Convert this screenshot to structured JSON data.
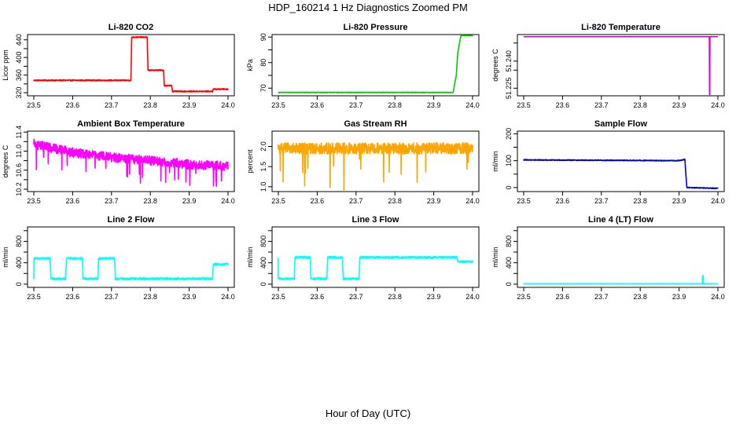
{
  "figure": {
    "title": "HDP_160214  1 Hz Diagnostics Zoomed PM",
    "xlabel": "Hour of Day (UTC)"
  },
  "chart_data": [
    {
      "type": "line",
      "title": "Li-820 CO2",
      "ylabel": "Licor ppm",
      "color": "#ff0000",
      "xlim": [
        23.5,
        24.0
      ],
      "ylim": [
        313,
        452
      ],
      "xticks": [
        "23.5",
        "23.6",
        "23.7",
        "23.8",
        "23.9",
        "24.0"
      ],
      "yticks": [
        320,
        340,
        360,
        380,
        400,
        420,
        440
      ],
      "yticks_shown": [
        "320",
        "360",
        "400",
        "440"
      ],
      "x": [
        23.5,
        23.75,
        23.752,
        23.792,
        23.794,
        23.834,
        23.836,
        23.855,
        23.857,
        23.96,
        23.962,
        24.0
      ],
      "y": [
        348,
        348,
        446,
        446,
        371,
        371,
        336,
        336,
        323,
        323,
        328,
        328
      ],
      "noise": 1.2
    },
    {
      "type": "line",
      "title": "Li-820 Pressure",
      "ylabel": "kPa",
      "color": "#00cc00",
      "xlim": [
        23.5,
        24.0
      ],
      "ylim": [
        67,
        91
      ],
      "xticks": [
        "23.5",
        "23.6",
        "23.7",
        "23.8",
        "23.9",
        "24.0"
      ],
      "yticks": [
        70,
        75,
        80,
        85,
        90
      ],
      "yticks_shown": [
        "70",
        "80",
        "90"
      ],
      "x": [
        23.5,
        23.95,
        23.958,
        23.962,
        23.97,
        24.0
      ],
      "y": [
        68.3,
        68.3,
        75,
        84,
        90.6,
        90.6
      ],
      "noise": 0.1
    },
    {
      "type": "line",
      "title": "Li-820 Temperature",
      "ylabel": "degrees C",
      "color": "#cc00cc",
      "xlim": [
        23.5,
        24.0
      ],
      "ylim": [
        51.2208,
        51.2547
      ],
      "xticks": [
        "23.5",
        "23.6",
        "23.7",
        "23.8",
        "23.9",
        "24.0"
      ],
      "yticks": [
        51.225,
        51.235,
        51.24,
        51.25
      ],
      "yticks_shown": [
        "51.225",
        "51.240"
      ],
      "x": [
        23.5,
        23.978,
        23.9785,
        23.979,
        23.9795,
        24.0
      ],
      "y": [
        51.2535,
        51.2535,
        51.2215,
        51.2215,
        51.2535,
        51.2535
      ],
      "noise": 0
    },
    {
      "type": "line",
      "title": "Ambient Box Temperature",
      "ylabel": "degrees C",
      "color": "#ff00ff",
      "xlim": [
        23.5,
        24.0
      ],
      "ylim": [
        10.15,
        11.42
      ],
      "xticks": [
        "23.5",
        "23.6",
        "23.7",
        "23.8",
        "23.9",
        "24.0"
      ],
      "yticks": [
        10.2,
        10.4,
        10.6,
        10.8,
        11.0,
        11.2,
        11.4
      ],
      "yticks_shown": [
        "10.2",
        "10.6",
        "11.0",
        "11.4"
      ],
      "x": [
        23.5,
        23.6,
        23.7,
        23.8,
        23.9,
        24.0
      ],
      "y": [
        11.15,
        10.97,
        10.87,
        10.8,
        10.72,
        10.68
      ],
      "noise": 0.1
    },
    {
      "type": "line",
      "title": "Gas Stream RH",
      "ylabel": "percent",
      "color": "#ffa500",
      "xlim": [
        23.5,
        24.0
      ],
      "ylim": [
        0.88,
        2.38
      ],
      "xticks": [
        "23.5",
        "23.6",
        "23.7",
        "23.8",
        "23.9",
        "24.0"
      ],
      "yticks": [
        1.0,
        1.5,
        2.0
      ],
      "yticks_shown": [
        "1.0",
        "1.5",
        "2.0"
      ],
      "x": [
        23.5,
        24.0
      ],
      "y": [
        1.95,
        1.95
      ],
      "noise": 0.14
    },
    {
      "type": "line",
      "title": "Sample Flow",
      "ylabel": "ml/min",
      "color": "#0000cc",
      "xlim": [
        23.5,
        24.0
      ],
      "ylim": [
        -15,
        210
      ],
      "xticks": [
        "23.5",
        "23.6",
        "23.7",
        "23.8",
        "23.9",
        "24.0"
      ],
      "yticks": [
        0,
        50,
        100,
        150,
        200
      ],
      "yticks_shown": [
        "0",
        "100",
        "200"
      ],
      "x": [
        23.5,
        23.9,
        23.915,
        23.917,
        23.92,
        24.0
      ],
      "y": [
        103,
        100,
        105,
        60,
        0,
        -3
      ],
      "noise": 1.5
    },
    {
      "type": "line",
      "title": "Line 2 Flow",
      "ylabel": "ml/min",
      "color": "#00ffff",
      "xlim": [
        23.5,
        24.0
      ],
      "ylim": [
        -60,
        1070
      ],
      "xticks": [
        "23.5",
        "23.6",
        "23.7",
        "23.8",
        "23.9",
        "24.0"
      ],
      "yticks": [
        0,
        200,
        400,
        600,
        800,
        1000
      ],
      "yticks_shown": [
        "0",
        "400",
        "800"
      ],
      "x": [
        23.5,
        23.501,
        23.503,
        23.542,
        23.544,
        23.582,
        23.584,
        23.625,
        23.627,
        23.665,
        23.667,
        23.708,
        23.71,
        23.96,
        23.962,
        24.0
      ],
      "y": [
        100,
        480,
        480,
        480,
        100,
        100,
        480,
        480,
        100,
        100,
        480,
        480,
        100,
        100,
        370,
        370
      ],
      "noise": 20
    },
    {
      "type": "line",
      "title": "Line 3 Flow",
      "ylabel": "ml/min",
      "color": "#00ffff",
      "xlim": [
        23.5,
        24.0
      ],
      "ylim": [
        -60,
        1070
      ],
      "xticks": [
        "23.5",
        "23.6",
        "23.7",
        "23.8",
        "23.9",
        "24.0"
      ],
      "yticks": [
        0,
        200,
        400,
        600,
        800,
        1000
      ],
      "yticks_shown": [
        "0",
        "400",
        "800"
      ],
      "x": [
        23.5,
        23.5,
        23.502,
        23.541,
        23.543,
        23.582,
        23.584,
        23.625,
        23.627,
        23.665,
        23.667,
        23.708,
        23.71,
        23.96,
        23.962,
        24.0
      ],
      "y": [
        480,
        100,
        100,
        100,
        500,
        500,
        100,
        100,
        500,
        500,
        100,
        100,
        500,
        500,
        420,
        420
      ],
      "noise": 20
    },
    {
      "type": "line",
      "title": "Line 4 (LT) Flow",
      "ylabel": "ml/min",
      "color": "#00ffff",
      "xlim": [
        23.5,
        24.0
      ],
      "ylim": [
        -60,
        1070
      ],
      "xticks": [
        "23.5",
        "23.6",
        "23.7",
        "23.8",
        "23.9",
        "24.0"
      ],
      "yticks": [
        0,
        200,
        400,
        600,
        800,
        1000
      ],
      "yticks_shown": [
        "0",
        "400",
        "800"
      ],
      "x": [
        23.5,
        23.96,
        23.961,
        23.962,
        23.963,
        24.0
      ],
      "y": [
        5,
        5,
        160,
        160,
        5,
        5
      ],
      "noise": 2
    }
  ]
}
